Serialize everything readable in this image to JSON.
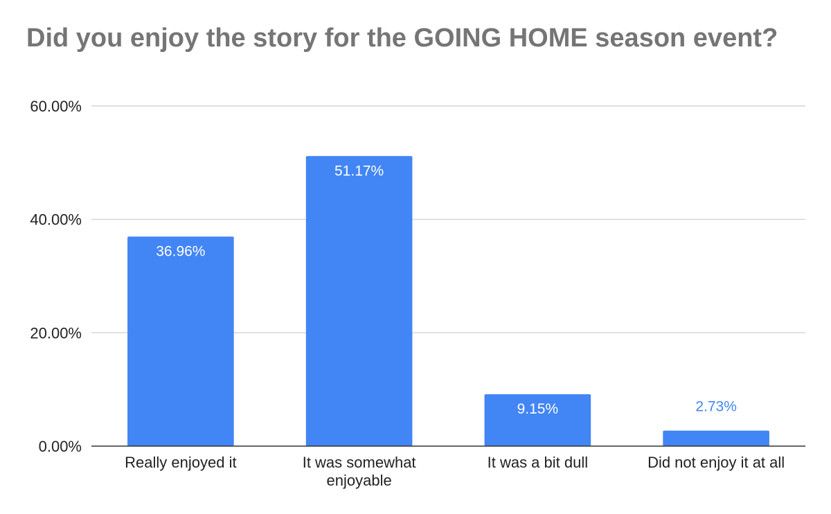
{
  "chart_data": {
    "type": "bar",
    "title": "Did you enjoy the story for the GOING HOME season event?",
    "categories": [
      [
        "Really enjoyed it"
      ],
      [
        "It was somewhat",
        "enjoyable"
      ],
      [
        "It was a bit dull"
      ],
      [
        "Did not enjoy it at all"
      ]
    ],
    "values": [
      36.96,
      51.17,
      9.15,
      2.73
    ],
    "data_labels": [
      "36.96%",
      "51.17%",
      "9.15%",
      "2.73%"
    ],
    "y_ticks": [
      {
        "value": 0,
        "label": "0.00%"
      },
      {
        "value": 20,
        "label": "20.00%"
      },
      {
        "value": 40,
        "label": "40.00%"
      },
      {
        "value": 60,
        "label": "60.00%"
      }
    ],
    "ylim": [
      0,
      60
    ],
    "xlabel": "",
    "ylabel": "",
    "grid": true,
    "legend": "none",
    "colors": {
      "bar": "#4285f4",
      "title": "#757575",
      "gridline": "#cccccc",
      "axis": "#333333",
      "label_inside": "#ffffff",
      "label_outside": "#4285f4"
    }
  }
}
